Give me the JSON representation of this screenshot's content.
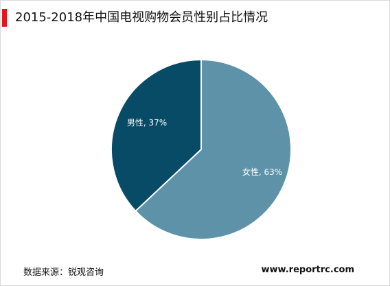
{
  "header": {
    "title": "2015-2018年中国电视购物会员性别占比情况",
    "accent_color": "#e8141b"
  },
  "chart_data": {
    "type": "pie",
    "title": "2015-2018年中国电视购物会员性别占比情况",
    "slices": [
      {
        "label": "男性, 37%",
        "value": 37,
        "color": "#074b67"
      },
      {
        "label": "女性, 63%",
        "value": 63,
        "color": "#5d92a9"
      }
    ],
    "start_angle_deg": 0,
    "direction": "counterclockwise",
    "legend": "none"
  },
  "footer": {
    "source": "数据来源：锐观咨询",
    "website": "www.reportrc.com"
  }
}
